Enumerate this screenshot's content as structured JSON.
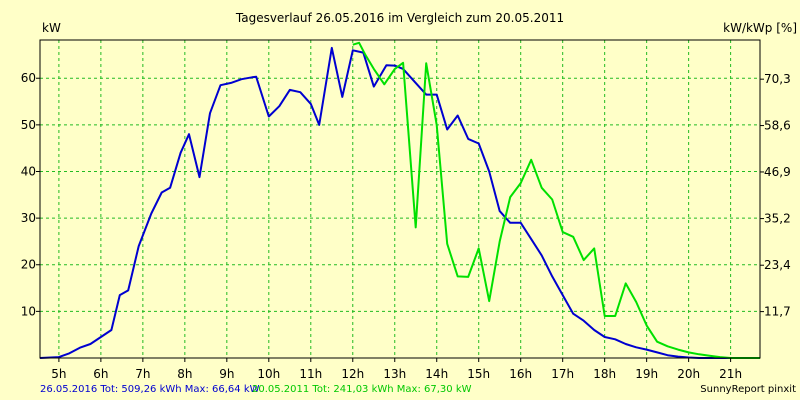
{
  "chart_data": {
    "type": "line",
    "title": "Tagesverlauf 26.05.2016 im Vergleich zum 20.05.2011",
    "ylabel_left": "kW",
    "ylabel_right": "kW/kWp [%]",
    "x_ticks": [
      "5h",
      "6h",
      "7h",
      "8h",
      "9h",
      "10h",
      "11h",
      "12h",
      "13h",
      "14h",
      "15h",
      "16h",
      "17h",
      "18h",
      "19h",
      "20h",
      "21h"
    ],
    "xlim": [
      4.55,
      21.7
    ],
    "ylim": [
      0,
      68.2
    ],
    "y_ticks": [
      10,
      20,
      30,
      40,
      50,
      60
    ],
    "y_right_ticks": [
      {
        "kw": 9.95,
        "label": "11,7"
      },
      {
        "kw": 19.9,
        "label": "23,4"
      },
      {
        "kw": 29.9,
        "label": "35,2"
      },
      {
        "kw": 39.9,
        "label": "46,9"
      },
      {
        "kw": 49.85,
        "label": "58,6"
      },
      {
        "kw": 59.8,
        "label": "70,3"
      }
    ],
    "grid": true,
    "series": [
      {
        "name": "26.05.2016",
        "color": "#0000d0",
        "points": [
          [
            4.55,
            0.0
          ],
          [
            5.0,
            0.2
          ],
          [
            5.25,
            1.0
          ],
          [
            5.5,
            2.2
          ],
          [
            5.75,
            3.0
          ],
          [
            6.0,
            4.5
          ],
          [
            6.25,
            6.0
          ],
          [
            6.45,
            13.5
          ],
          [
            6.65,
            14.5
          ],
          [
            6.9,
            24.0
          ],
          [
            7.2,
            31.0
          ],
          [
            7.45,
            35.5
          ],
          [
            7.65,
            36.5
          ],
          [
            7.9,
            44.0
          ],
          [
            8.1,
            48.0
          ],
          [
            8.35,
            38.8
          ],
          [
            8.6,
            52.5
          ],
          [
            8.85,
            58.5
          ],
          [
            9.1,
            59.0
          ],
          [
            9.35,
            59.8
          ],
          [
            9.6,
            60.2
          ],
          [
            9.7,
            60.3
          ],
          [
            10.0,
            51.8
          ],
          [
            10.25,
            54.0
          ],
          [
            10.5,
            57.5
          ],
          [
            10.75,
            57.0
          ],
          [
            11.0,
            54.5
          ],
          [
            11.2,
            50.0
          ],
          [
            11.5,
            66.5
          ],
          [
            11.75,
            56.0
          ],
          [
            12.0,
            66.0
          ],
          [
            12.25,
            65.5
          ],
          [
            12.5,
            58.2
          ],
          [
            12.8,
            62.8
          ],
          [
            13.0,
            62.7
          ],
          [
            13.2,
            62.0
          ],
          [
            13.5,
            59.0
          ],
          [
            13.75,
            56.5
          ],
          [
            14.0,
            56.5
          ],
          [
            14.25,
            49.0
          ],
          [
            14.5,
            52.0
          ],
          [
            14.75,
            47.0
          ],
          [
            15.0,
            46.0
          ],
          [
            15.25,
            40.0
          ],
          [
            15.5,
            31.5
          ],
          [
            15.75,
            29.0
          ],
          [
            16.0,
            29.0
          ],
          [
            16.25,
            25.5
          ],
          [
            16.5,
            22.0
          ],
          [
            16.75,
            17.5
          ],
          [
            17.0,
            13.5
          ],
          [
            17.25,
            9.5
          ],
          [
            17.5,
            8.0
          ],
          [
            17.75,
            6.0
          ],
          [
            18.0,
            4.5
          ],
          [
            18.25,
            4.0
          ],
          [
            18.5,
            3.0
          ],
          [
            18.75,
            2.3
          ],
          [
            19.0,
            1.8
          ],
          [
            19.25,
            1.2
          ],
          [
            19.5,
            0.6
          ],
          [
            19.75,
            0.3
          ],
          [
            20.0,
            0.1
          ],
          [
            20.25,
            0.0
          ],
          [
            21.7,
            0.0
          ]
        ]
      },
      {
        "name": "20.05.2011",
        "color": "#00e000",
        "points": [
          [
            12.0,
            67.2
          ],
          [
            12.15,
            67.6
          ],
          [
            12.3,
            65.0
          ],
          [
            12.5,
            62.0
          ],
          [
            12.75,
            58.7
          ],
          [
            13.0,
            62.0
          ],
          [
            13.2,
            63.3
          ],
          [
            13.5,
            28.0
          ],
          [
            13.75,
            63.2
          ],
          [
            14.0,
            50.0
          ],
          [
            14.25,
            24.5
          ],
          [
            14.5,
            17.5
          ],
          [
            14.75,
            17.4
          ],
          [
            15.0,
            23.5
          ],
          [
            15.25,
            12.2
          ],
          [
            15.5,
            25.0
          ],
          [
            15.75,
            34.5
          ],
          [
            16.0,
            37.5
          ],
          [
            16.25,
            42.5
          ],
          [
            16.5,
            36.5
          ],
          [
            16.75,
            34.0
          ],
          [
            17.0,
            27.0
          ],
          [
            17.25,
            26.0
          ],
          [
            17.5,
            21.0
          ],
          [
            17.75,
            23.5
          ],
          [
            18.0,
            9.0
          ],
          [
            18.25,
            9.0
          ],
          [
            18.5,
            16.0
          ],
          [
            18.75,
            12.0
          ],
          [
            19.0,
            7.0
          ],
          [
            19.25,
            3.5
          ],
          [
            19.5,
            2.5
          ],
          [
            19.75,
            1.8
          ],
          [
            20.0,
            1.2
          ],
          [
            20.25,
            0.8
          ],
          [
            20.5,
            0.5
          ],
          [
            20.75,
            0.2
          ],
          [
            21.0,
            0.0
          ],
          [
            21.7,
            0.0
          ]
        ]
      }
    ]
  },
  "footer": {
    "series1_summary": "26.05.2016 Tot: 509,26 kWh Max: 66,64 kW",
    "series2_summary": "20.05.2011 Tot: 241,03 kWh Max: 67,30 kW",
    "credit": "SunnyReport pinxit"
  }
}
